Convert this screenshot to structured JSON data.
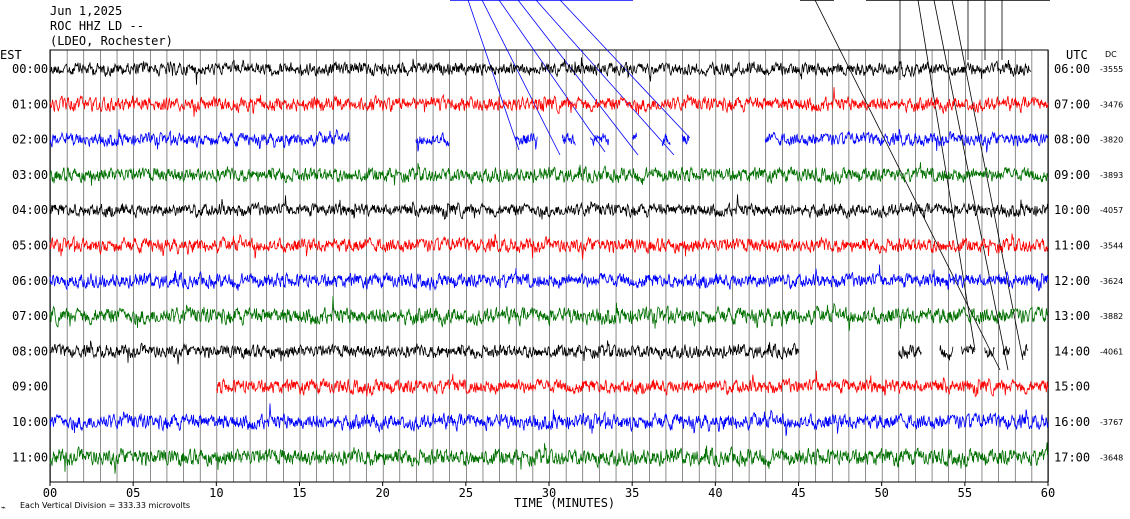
{
  "header": {
    "date": "Jun 1,2025",
    "station": "ROC HHZ LD --",
    "network": "(LDEO, Rochester)"
  },
  "left_timezone": "EST",
  "right_timezone": "UTC",
  "dc_heading": "DC",
  "footer": {
    "scale_text": "Each Vertical Division =  333.33 microvolts",
    "corner_mark": "⌁"
  },
  "colors": {
    "trace_cycle": [
      "#000000",
      "#ff0000",
      "#0000ff",
      "#007000"
    ],
    "event_lines_blue": "#0000ff",
    "event_lines_black": "#000000",
    "grid": "#000000"
  },
  "chart_data": {
    "type": "helicorder",
    "title": "",
    "xlabel": "TIME (MINUTES)",
    "ylabel_left": "EST",
    "ylabel_right": "UTC",
    "x_ticks": [
      "00",
      "05",
      "10",
      "15",
      "20",
      "25",
      "30",
      "35",
      "40",
      "45",
      "50",
      "55",
      "60"
    ],
    "xlim": [
      0,
      60
    ],
    "minute_gridlines": true,
    "rows": [
      {
        "est": "00:00",
        "utc": "06:00",
        "dc": "-3555",
        "color": "#000000",
        "amplitude": 0.55,
        "segments": [
          [
            0,
            59
          ]
        ]
      },
      {
        "est": "01:00",
        "utc": "07:00",
        "dc": "-3476",
        "color": "#ff0000",
        "amplitude": 0.6,
        "segments": [
          [
            0,
            60
          ]
        ]
      },
      {
        "est": "02:00",
        "utc": "08:00",
        "dc": "-3820",
        "color": "#0000ff",
        "amplitude": 0.55,
        "segments": [
          [
            0,
            18
          ],
          [
            22,
            24
          ],
          [
            28,
            29.3
          ],
          [
            30.8,
            31.6
          ],
          [
            32.5,
            33.6
          ],
          [
            35,
            35.3
          ],
          [
            36.8,
            37.3
          ],
          [
            38,
            38.4
          ],
          [
            43,
            60
          ]
        ]
      },
      {
        "est": "03:00",
        "utc": "09:00",
        "dc": "-3893",
        "color": "#007000",
        "amplitude": 0.6,
        "segments": [
          [
            0,
            60
          ]
        ]
      },
      {
        "est": "04:00",
        "utc": "10:00",
        "dc": "-4057",
        "color": "#000000",
        "amplitude": 0.55,
        "segments": [
          [
            0,
            60
          ]
        ]
      },
      {
        "est": "05:00",
        "utc": "11:00",
        "dc": "-3544",
        "color": "#ff0000",
        "amplitude": 0.6,
        "segments": [
          [
            0,
            60
          ]
        ]
      },
      {
        "est": "06:00",
        "utc": "12:00",
        "dc": "-3624",
        "color": "#0000ff",
        "amplitude": 0.6,
        "segments": [
          [
            0,
            60
          ]
        ]
      },
      {
        "est": "07:00",
        "utc": "13:00",
        "dc": "-3882",
        "color": "#007000",
        "amplitude": 0.7,
        "segments": [
          [
            0,
            60
          ]
        ]
      },
      {
        "est": "08:00",
        "utc": "14:00",
        "dc": "-4061",
        "color": "#000000",
        "amplitude": 0.55,
        "segments": [
          [
            0,
            45
          ],
          [
            51,
            52.4
          ],
          [
            53.5,
            54.3
          ],
          [
            54.8,
            55.6
          ],
          [
            56.2,
            56.8
          ],
          [
            57.3,
            57.7
          ],
          [
            58.4,
            58.8
          ]
        ]
      },
      {
        "est": "09:00",
        "utc": "15:00",
        "dc": "",
        "color": "#ff0000",
        "amplitude": 0.6,
        "segments": [
          [
            10,
            60
          ]
        ]
      },
      {
        "est": "10:00",
        "utc": "16:00",
        "dc": "-3767",
        "color": "#0000ff",
        "amplitude": 0.65,
        "segments": [
          [
            0,
            60
          ]
        ]
      },
      {
        "est": "11:00",
        "utc": "17:00",
        "dc": "-3648",
        "color": "#007000",
        "amplitude": 0.7,
        "segments": [
          [
            0,
            60
          ]
        ]
      }
    ]
  }
}
